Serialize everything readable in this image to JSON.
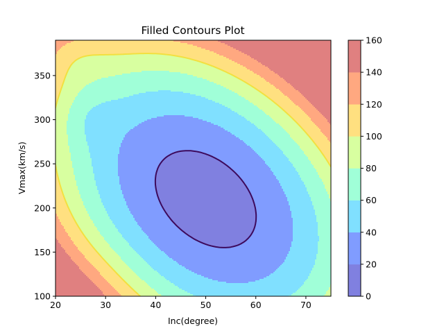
{
  "chart_data": {
    "type": "heatmap",
    "subtype": "filled-contour",
    "title": "Filled Contours Plot",
    "xlabel": "Inc(degree)",
    "ylabel": "Vmax(km/s)",
    "xlim": [
      20,
      75
    ],
    "ylim": [
      100,
      390
    ],
    "x_ticks": [
      20,
      30,
      40,
      50,
      60,
      70
    ],
    "y_ticks": [
      100,
      150,
      200,
      250,
      300,
      350
    ],
    "colorbar": {
      "levels": [
        0,
        20,
        40,
        60,
        80,
        100,
        120,
        140,
        160
      ],
      "tick_labels": [
        "0",
        "20",
        "40",
        "60",
        "80",
        "100",
        "120",
        "140",
        "160"
      ],
      "colors": [
        "#8080e0",
        "#809cff",
        "#80e0ff",
        "#a0ffd8",
        "#d8ffa0",
        "#ffe080",
        "#ffa880",
        "#e08080"
      ]
    },
    "contour_lines": [
      {
        "level": 20,
        "color": "#3d0a5c"
      },
      {
        "level": 100,
        "color": "#f2e040"
      }
    ],
    "field": {
      "description_levels": "band index per cell; 0 = 0-20 ... 7 = 140-160",
      "peak_low": {
        "x": 50,
        "y": 210,
        "value": 10
      },
      "peak_high": {
        "x": 75,
        "y": 390,
        "value": 150
      }
    }
  }
}
